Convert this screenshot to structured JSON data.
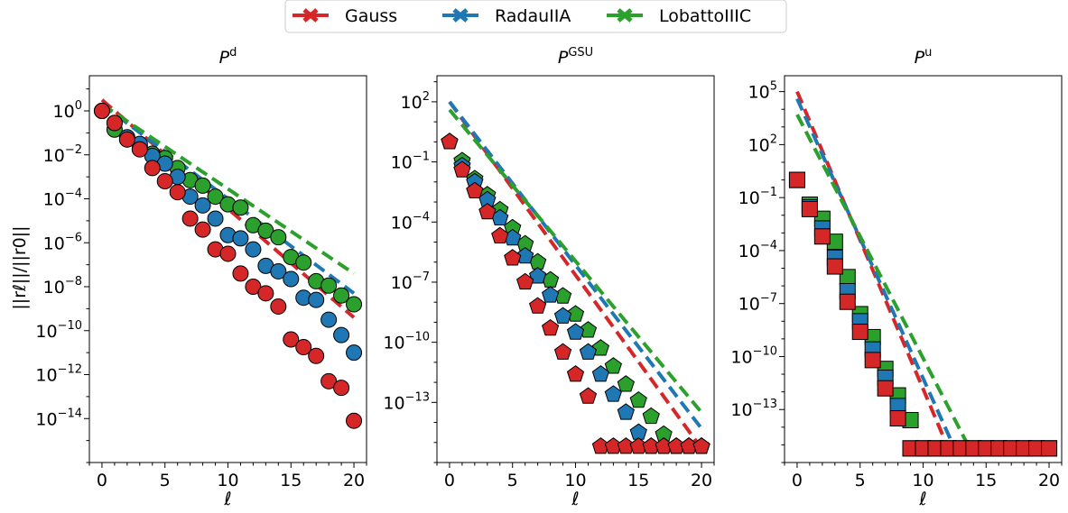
{
  "legend": [
    {
      "label": "Gauss",
      "color": "#d62728"
    },
    {
      "label": "RadauIIA",
      "color": "#1f77b4"
    },
    {
      "label": "LobattoIIIC",
      "color": "#2ca02c"
    }
  ],
  "ylabel": "||rℓ||/||r0||",
  "chart_data": [
    {
      "type": "scatter",
      "title": "P",
      "title_sup": "d",
      "xlabel": "ℓ",
      "marker": "circle",
      "xlim": [
        -1,
        21
      ],
      "ylog": true,
      "ylim_log10": [
        -16,
        1.6
      ],
      "xticks": [
        0,
        5,
        10,
        15,
        20
      ],
      "xtick_labels": [
        "0",
        "5",
        "10",
        "15",
        "20"
      ],
      "yticks_log10": [
        0,
        -2,
        -4,
        -6,
        -8,
        -10,
        -12,
        -14
      ],
      "ytick_labels": [
        "0",
        "-2",
        "-4",
        "-6",
        "-8",
        "-10",
        "-12",
        "-14"
      ],
      "series": [
        {
          "name": "Gauss",
          "x": [
            0,
            1,
            2,
            3,
            4,
            5,
            6,
            7,
            8,
            9,
            10,
            11,
            12,
            13,
            14,
            15,
            16,
            17,
            18,
            19,
            20
          ],
          "log10_y": [
            0,
            -0.55,
            -1.3,
            -1.75,
            -2.6,
            -3.2,
            -3.7,
            -4.9,
            -5.4,
            -6.3,
            -6.5,
            -7.4,
            -8.0,
            -8.3,
            -8.9,
            -10.4,
            -10.75,
            -11.15,
            -12.3,
            -12.6,
            -14.1
          ]
        },
        {
          "name": "RadauIIA",
          "x": [
            0,
            1,
            2,
            3,
            4,
            5,
            6,
            7,
            8,
            9,
            10,
            11,
            12,
            13,
            14,
            15,
            16,
            17,
            18,
            19,
            20
          ],
          "log10_y": [
            0,
            -0.55,
            -1.2,
            -1.5,
            -2.05,
            -2.4,
            -3.0,
            -3.9,
            -4.3,
            -4.9,
            -5.65,
            -5.8,
            -6.3,
            -7.05,
            -7.3,
            -7.65,
            -8.5,
            -8.6,
            -9.5,
            -10.2,
            -11.0
          ]
        },
        {
          "name": "LobattoIIIC",
          "x": [
            0,
            1,
            2,
            3,
            4,
            5,
            6,
            7,
            8,
            9,
            10,
            11,
            12,
            13,
            14,
            15,
            16,
            17,
            18,
            19,
            20
          ],
          "log10_y": [
            0,
            -0.85,
            -1.3,
            -1.6,
            -1.95,
            -2.15,
            -2.6,
            -3.15,
            -3.4,
            -3.9,
            -4.25,
            -4.4,
            -5.2,
            -5.45,
            -5.75,
            -6.65,
            -6.9,
            -7.75,
            -7.95,
            -8.4,
            -8.8
          ]
        }
      ],
      "fit_lines": [
        {
          "name": "Gauss",
          "x": [
            0,
            20
          ],
          "log10_y": [
            0.5,
            -9.4
          ]
        },
        {
          "name": "RadauIIA",
          "x": [
            0,
            20
          ],
          "log10_y": [
            0.3,
            -8.3
          ]
        },
        {
          "name": "LobattoIIIC",
          "x": [
            0,
            20
          ],
          "log10_y": [
            0.3,
            -7.4
          ]
        }
      ]
    },
    {
      "type": "scatter",
      "title": "P",
      "title_sup": "GSU",
      "xlabel": "ℓ",
      "marker": "pentagon",
      "xlim": [
        -1,
        21
      ],
      "ylog": true,
      "ylim_log10": [
        -16,
        3.3
      ],
      "xticks": [
        0,
        5,
        10,
        15,
        20
      ],
      "xtick_labels": [
        "0",
        "5",
        "10",
        "15",
        "20"
      ],
      "yticks_log10": [
        2,
        -1,
        -4,
        -7,
        -10,
        -13
      ],
      "ytick_labels": [
        "2",
        "-1",
        "-4",
        "-7",
        "-10",
        "-13"
      ],
      "series": [
        {
          "name": "Gauss",
          "x": [
            0,
            1,
            2,
            3,
            4,
            5,
            6,
            7,
            8,
            9,
            10,
            11,
            12,
            13,
            14,
            15,
            16,
            17,
            18,
            19,
            20
          ],
          "log10_y": [
            0,
            -1.4,
            -2.45,
            -3.5,
            -4.7,
            -5.8,
            -7.0,
            -8.2,
            -9.3,
            -10.5,
            -11.6,
            -12.7,
            -15.2,
            -15.2,
            -15.2,
            -15.2,
            -15.2,
            -15.2,
            -15.2,
            -15.2,
            -15.2
          ]
        },
        {
          "name": "RadauIIA",
          "x": [
            0,
            1,
            2,
            3,
            4,
            5,
            6,
            7,
            8,
            9,
            10,
            11,
            12,
            13,
            14,
            15,
            16,
            17,
            18,
            19,
            20
          ],
          "log10_y": [
            0,
            -1.2,
            -2.0,
            -2.9,
            -3.8,
            -4.8,
            -5.7,
            -6.7,
            -7.65,
            -8.7,
            -9.5,
            -10.5,
            -11.6,
            -12.6,
            -13.5,
            -14.5,
            -15.2,
            -15.2,
            -15.2,
            -15.2,
            -15.2
          ]
        },
        {
          "name": "LobattoIIIC",
          "x": [
            0,
            1,
            2,
            3,
            4,
            5,
            6,
            7,
            8,
            9,
            10,
            11,
            12,
            13,
            14,
            15,
            16,
            17,
            18,
            19,
            20
          ],
          "log10_y": [
            0,
            -0.95,
            -1.85,
            -2.65,
            -3.4,
            -4.3,
            -5.1,
            -6.0,
            -6.9,
            -7.7,
            -8.6,
            -9.4,
            -10.3,
            -11.2,
            -12.1,
            -12.9,
            -13.7,
            -14.6,
            -15.2,
            -15.2,
            -15.2
          ]
        }
      ],
      "fit_lines": [
        {
          "name": "Gauss",
          "x": [
            0,
            20
          ],
          "log10_y": [
            2.0,
            -15.3
          ]
        },
        {
          "name": "RadauIIA",
          "x": [
            0,
            20
          ],
          "log10_y": [
            2.0,
            -14.3
          ]
        },
        {
          "name": "LobattoIIIC",
          "x": [
            0,
            20
          ],
          "log10_y": [
            1.6,
            -13.5
          ]
        }
      ]
    },
    {
      "type": "scatter",
      "title": "P",
      "title_sup": "u",
      "xlabel": "ℓ",
      "marker": "square",
      "xlim": [
        -1,
        21
      ],
      "ylog": true,
      "ylim_log10": [
        -16,
        5.9
      ],
      "xticks": [
        0,
        5,
        10,
        15,
        20
      ],
      "xtick_labels": [
        "0",
        "5",
        "10",
        "15",
        "20"
      ],
      "yticks_log10": [
        5,
        2,
        -1,
        -4,
        -7,
        -10,
        -13
      ],
      "ytick_labels": [
        "5",
        "2",
        "-1",
        "-4",
        "-7",
        "-10",
        "-13"
      ],
      "series": [
        {
          "name": "Gauss",
          "x": [
            0,
            1,
            2,
            3,
            4,
            5,
            6,
            7,
            8,
            9,
            10,
            11,
            12,
            13,
            14,
            15,
            16,
            17,
            18,
            19,
            20
          ],
          "log10_y": [
            0,
            -1.65,
            -3.2,
            -4.9,
            -6.9,
            -8.6,
            -10.2,
            -11.8,
            -13.5,
            -15.2,
            -15.2,
            -15.2,
            -15.2,
            -15.2,
            -15.2,
            -15.2,
            -15.2,
            -15.2,
            -15.2,
            -15.2,
            -15.2
          ]
        },
        {
          "name": "RadauIIA",
          "x": [
            0,
            1,
            2,
            3,
            4,
            5,
            6,
            7,
            8,
            9,
            10,
            11,
            12,
            13,
            14,
            15,
            16,
            17,
            18,
            19,
            20
          ],
          "log10_y": [
            0,
            -1.55,
            -2.75,
            -4.4,
            -6.3,
            -8.0,
            -9.6,
            -11.2,
            -12.8,
            -15.2,
            -15.2,
            -15.2,
            -15.2,
            -15.2,
            -15.2,
            -15.2,
            -15.2,
            -15.2,
            -15.2,
            -15.2,
            -15.2
          ]
        },
        {
          "name": "LobattoIIIC",
          "x": [
            0,
            1,
            2,
            3,
            4,
            5,
            6,
            7,
            8,
            9,
            10,
            11,
            12,
            13,
            14,
            15,
            16,
            17,
            18,
            19,
            20
          ],
          "log10_y": [
            0,
            -1.4,
            -2.2,
            -3.5,
            -5.5,
            -7.6,
            -8.9,
            -10.7,
            -12.2,
            -13.6,
            -15.2,
            -15.2,
            -15.2,
            -15.2,
            -15.2,
            -15.2,
            -15.2,
            -15.2,
            -15.2,
            -15.2,
            -15.2
          ]
        }
      ],
      "fit_lines": [
        {
          "name": "Gauss",
          "x": [
            0,
            12,
            20
          ],
          "log10_y": [
            5.0,
            -15.2,
            -15.2
          ]
        },
        {
          "name": "RadauIIA",
          "x": [
            0,
            12.5,
            20
          ],
          "log10_y": [
            4.6,
            -15.2,
            -15.2
          ]
        },
        {
          "name": "LobattoIIIC",
          "x": [
            0,
            13.7,
            20
          ],
          "log10_y": [
            3.7,
            -15.2,
            -15.2
          ]
        }
      ]
    }
  ]
}
